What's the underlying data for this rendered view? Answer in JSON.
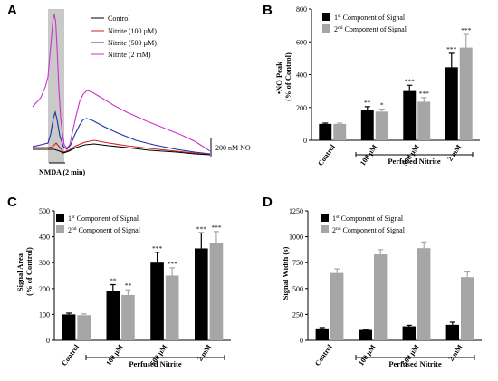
{
  "colors": {
    "first": "#000000",
    "second": "#a6a6a6",
    "shade": "#c9c9c9"
  },
  "chart_data": [
    {
      "panel": "A",
      "type": "line",
      "legend": [
        "Control",
        "Nitrite (100 µM)",
        "Nitrite (500 µM)",
        "Nitrite (2 mM)"
      ],
      "series_colors": [
        "#000000",
        "#d11f1f",
        "#1c2ea8",
        "#cc33cc"
      ],
      "stimulus_label": "NMDA (2 min)",
      "scale_bar_label": "200 nM NO"
    },
    {
      "panel": "B",
      "type": "bar",
      "ylabel_lines": [
        "•NO Peak",
        "(% of Control)"
      ],
      "ylim": [
        0,
        800
      ],
      "yticks": [
        0,
        200,
        400,
        600,
        800
      ],
      "categories": [
        "Control",
        "100 µM",
        "500 µM",
        "2 mM"
      ],
      "group_label": "Perfused Nitrite",
      "series": [
        {
          "name_base": "1",
          "name_sup": "st",
          "name_rest": " Component of Signal",
          "values": [
            100,
            185,
            300,
            445
          ],
          "errors": [
            5,
            20,
            35,
            85
          ],
          "stars": [
            "",
            "**",
            "***",
            "***"
          ]
        },
        {
          "name_base": "2",
          "name_sup": "nd",
          "name_rest": " Component of Signal",
          "values": [
            100,
            175,
            235,
            565
          ],
          "errors": [
            5,
            15,
            25,
            80
          ],
          "stars": [
            "",
            "*",
            "***",
            "***"
          ]
        }
      ]
    },
    {
      "panel": "C",
      "type": "bar",
      "ylabel_lines": [
        "Signal Area",
        "(% of Control)"
      ],
      "ylim": [
        0,
        500
      ],
      "yticks": [
        0,
        100,
        200,
        300,
        400,
        500
      ],
      "categories": [
        "Control",
        "100 µM",
        "500 µM",
        "2 mM"
      ],
      "group_label": "Perfused Nitrite",
      "series": [
        {
          "name_base": "1",
          "name_sup": "st",
          "name_rest": " Component of Signal",
          "values": [
            100,
            190,
            300,
            355
          ],
          "errors": [
            5,
            25,
            40,
            60
          ],
          "stars": [
            "",
            "**",
            "***",
            "***"
          ]
        },
        {
          "name_base": "2",
          "name_sup": "nd",
          "name_rest": " Component of Signal",
          "values": [
            97,
            175,
            250,
            375
          ],
          "errors": [
            5,
            20,
            30,
            45
          ],
          "stars": [
            "",
            "**",
            "***",
            "***"
          ]
        }
      ]
    },
    {
      "panel": "D",
      "type": "bar",
      "ylabel_lines": [
        "Signal Width (s)"
      ],
      "ylim": [
        0,
        1250
      ],
      "yticks": [
        0,
        250,
        500,
        750,
        1000,
        1250
      ],
      "categories": [
        "Control",
        "100 µM",
        "500 µM",
        "2 mM"
      ],
      "group_label": "Perfused Nitrite",
      "series": [
        {
          "name_base": "1",
          "name_sup": "st",
          "name_rest": " Component of Signal",
          "values": [
            115,
            100,
            135,
            150
          ],
          "errors": [
            8,
            6,
            10,
            25
          ],
          "stars": [
            "",
            "",
            "",
            ""
          ]
        },
        {
          "name_base": "2",
          "name_sup": "nd",
          "name_rest": " Component of Signal",
          "values": [
            650,
            830,
            890,
            610
          ],
          "errors": [
            40,
            45,
            60,
            50
          ],
          "stars": [
            "",
            "",
            "",
            ""
          ]
        }
      ]
    }
  ]
}
